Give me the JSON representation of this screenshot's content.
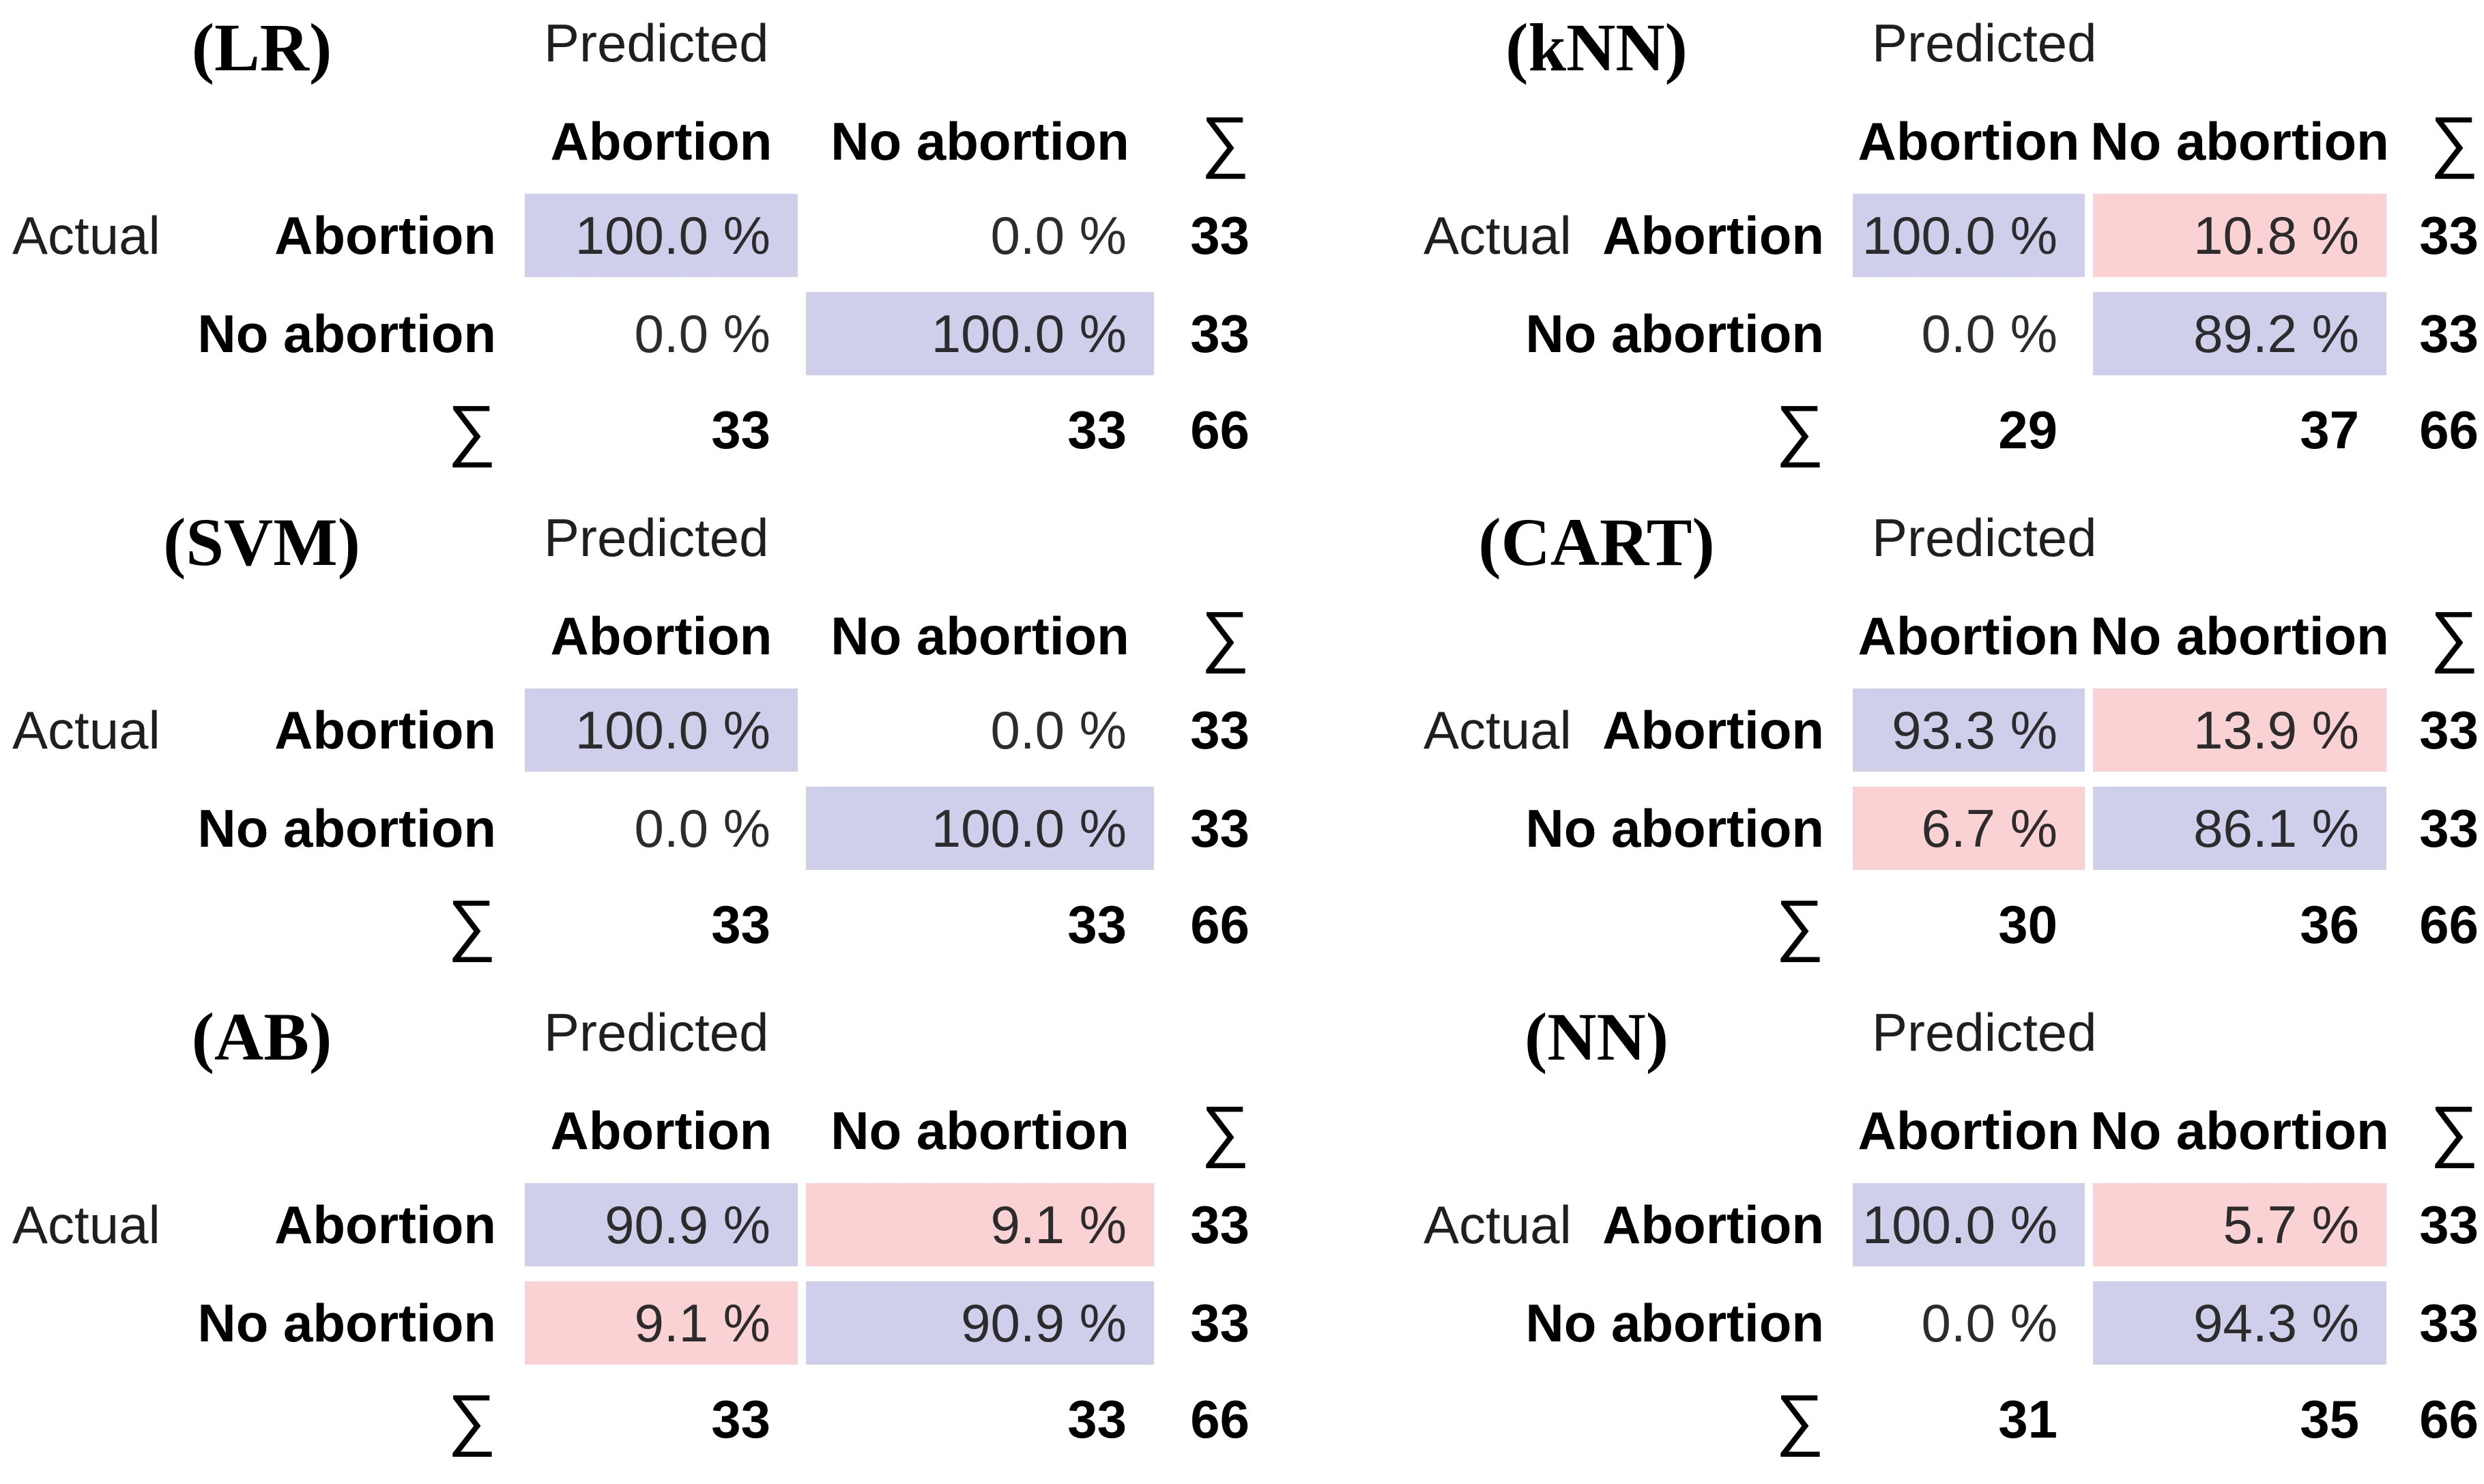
{
  "figure": {
    "background": "#ffffff",
    "description_fields_visible": false
  },
  "colors": {
    "diagonal": "#cfcfec",
    "offdiagonal": "#fad2d3",
    "none": "transparent"
  },
  "chart_data": [
    {
      "type": "table",
      "subtype": "confusion-matrix",
      "title": "(LR)",
      "model": "LR",
      "column_axis": "Predicted",
      "row_axis": "Actual",
      "col_headers": [
        "Abortion",
        "No abortion"
      ],
      "row_headers": [
        "Abortion",
        "No abortion"
      ],
      "sum_symbol": "∑",
      "cells": [
        [
          {
            "percent": 100.0,
            "value": "100.0 %",
            "highlight": "diagonal"
          },
          {
            "percent": 0.0,
            "value": "0.0 %",
            "highlight": "none"
          }
        ],
        [
          {
            "percent": 0.0,
            "value": "0.0 %",
            "highlight": "none"
          },
          {
            "percent": 100.0,
            "value": "100.0 %",
            "highlight": "diagonal"
          }
        ]
      ],
      "row_sums": [
        "33",
        "33"
      ],
      "col_sums": [
        "33",
        "33"
      ],
      "total": "66"
    },
    {
      "type": "table",
      "subtype": "confusion-matrix",
      "title": "(kNN)",
      "model": "kNN",
      "column_axis": "Predicted",
      "row_axis": "Actual",
      "col_headers": [
        "Abortion",
        "No abortion"
      ],
      "row_headers": [
        "Abortion",
        "No abortion"
      ],
      "sum_symbol": "∑",
      "cells": [
        [
          {
            "percent": 100.0,
            "value": "100.0 %",
            "highlight": "diagonal"
          },
          {
            "percent": 10.8,
            "value": "10.8 %",
            "highlight": "offdiagonal"
          }
        ],
        [
          {
            "percent": 0.0,
            "value": "0.0 %",
            "highlight": "none"
          },
          {
            "percent": 89.2,
            "value": "89.2 %",
            "highlight": "diagonal"
          }
        ]
      ],
      "row_sums": [
        "33",
        "33"
      ],
      "col_sums": [
        "29",
        "37"
      ],
      "total": "66"
    },
    {
      "type": "table",
      "subtype": "confusion-matrix",
      "title": "(SVM)",
      "model": "SVM",
      "column_axis": "Predicted",
      "row_axis": "Actual",
      "col_headers": [
        "Abortion",
        "No abortion"
      ],
      "row_headers": [
        "Abortion",
        "No abortion"
      ],
      "sum_symbol": "∑",
      "cells": [
        [
          {
            "percent": 100.0,
            "value": "100.0 %",
            "highlight": "diagonal"
          },
          {
            "percent": 0.0,
            "value": "0.0 %",
            "highlight": "none"
          }
        ],
        [
          {
            "percent": 0.0,
            "value": "0.0 %",
            "highlight": "none"
          },
          {
            "percent": 100.0,
            "value": "100.0 %",
            "highlight": "diagonal"
          }
        ]
      ],
      "row_sums": [
        "33",
        "33"
      ],
      "col_sums": [
        "33",
        "33"
      ],
      "total": "66"
    },
    {
      "type": "table",
      "subtype": "confusion-matrix",
      "title": "(CART)",
      "model": "CART",
      "column_axis": "Predicted",
      "row_axis": "Actual",
      "col_headers": [
        "Abortion",
        "No abortion"
      ],
      "row_headers": [
        "Abortion",
        "No abortion"
      ],
      "sum_symbol": "∑",
      "cells": [
        [
          {
            "percent": 93.3,
            "value": "93.3 %",
            "highlight": "diagonal"
          },
          {
            "percent": 13.9,
            "value": "13.9 %",
            "highlight": "offdiagonal"
          }
        ],
        [
          {
            "percent": 6.7,
            "value": "6.7 %",
            "highlight": "offdiagonal"
          },
          {
            "percent": 86.1,
            "value": "86.1 %",
            "highlight": "diagonal"
          }
        ]
      ],
      "row_sums": [
        "33",
        "33"
      ],
      "col_sums": [
        "30",
        "36"
      ],
      "total": "66"
    },
    {
      "type": "table",
      "subtype": "confusion-matrix",
      "title": "(AB)",
      "model": "AB",
      "column_axis": "Predicted",
      "row_axis": "Actual",
      "col_headers": [
        "Abortion",
        "No abortion"
      ],
      "row_headers": [
        "Abortion",
        "No abortion"
      ],
      "sum_symbol": "∑",
      "cells": [
        [
          {
            "percent": 90.9,
            "value": "90.9 %",
            "highlight": "diagonal"
          },
          {
            "percent": 9.1,
            "value": "9.1 %",
            "highlight": "offdiagonal"
          }
        ],
        [
          {
            "percent": 9.1,
            "value": "9.1 %",
            "highlight": "offdiagonal"
          },
          {
            "percent": 90.9,
            "value": "90.9 %",
            "highlight": "diagonal"
          }
        ]
      ],
      "row_sums": [
        "33",
        "33"
      ],
      "col_sums": [
        "33",
        "33"
      ],
      "total": "66"
    },
    {
      "type": "table",
      "subtype": "confusion-matrix",
      "title": "(NN)",
      "model": "NN",
      "column_axis": "Predicted",
      "row_axis": "Actual",
      "col_headers": [
        "Abortion",
        "No abortion"
      ],
      "row_headers": [
        "Abortion",
        "No abortion"
      ],
      "sum_symbol": "∑",
      "cells": [
        [
          {
            "percent": 100.0,
            "value": "100.0 %",
            "highlight": "diagonal"
          },
          {
            "percent": 5.7,
            "value": "5.7 %",
            "highlight": "offdiagonal"
          }
        ],
        [
          {
            "percent": 0.0,
            "value": "0.0 %",
            "highlight": "none"
          },
          {
            "percent": 94.3,
            "value": "94.3 %",
            "highlight": "diagonal"
          }
        ]
      ],
      "row_sums": [
        "33",
        "33"
      ],
      "col_sums": [
        "31",
        "35"
      ],
      "total": "66"
    }
  ]
}
